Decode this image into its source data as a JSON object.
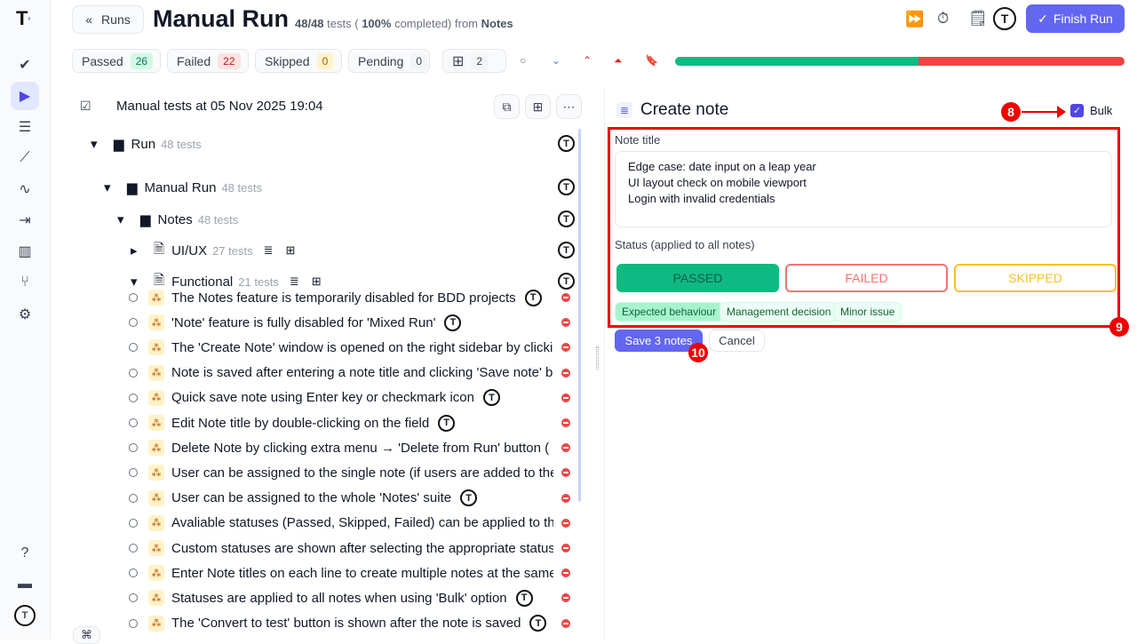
{
  "sidebar": {
    "logo": "T",
    "items": [
      {
        "icon": "check-icon",
        "glyph": "✔"
      },
      {
        "icon": "play-icon",
        "glyph": "▶",
        "active": true
      },
      {
        "icon": "list-icon",
        "glyph": "☰"
      },
      {
        "icon": "steps-icon",
        "glyph": "⟋"
      },
      {
        "icon": "pulse-icon",
        "glyph": "∿"
      },
      {
        "icon": "import-icon",
        "glyph": "⇥"
      },
      {
        "icon": "chart-icon",
        "glyph": "▥"
      },
      {
        "icon": "branch-icon",
        "glyph": "⑂"
      },
      {
        "icon": "gear-icon",
        "glyph": "⚙"
      }
    ],
    "bottom": [
      {
        "icon": "help-icon",
        "glyph": "?"
      },
      {
        "icon": "folder-icon",
        "glyph": "▬"
      }
    ]
  },
  "header": {
    "back_label": "Runs",
    "title": "Manual Run",
    "progress_count": "48/48",
    "tests_word": "tests (",
    "percent": "100%",
    "completed_text": "completed) from",
    "source": "Notes",
    "finish_label": "Finish Run"
  },
  "filters": [
    {
      "label": "Passed",
      "count": "26"
    },
    {
      "label": "Failed",
      "count": "22"
    },
    {
      "label": "Skipped",
      "count": "0"
    },
    {
      "label": "Pending",
      "count": "0"
    },
    {
      "label": "",
      "count": "2"
    }
  ],
  "progress": {
    "passed_pct": 54.2,
    "failed_pct": 45.8,
    "passed_color": "#10b981",
    "failed_color": "#ef4444"
  },
  "tree": {
    "header": "Manual tests at 05 Nov 2025 19:04",
    "nodes": [
      {
        "label": "Run",
        "count": "48 tests"
      },
      {
        "label": "Manual Run",
        "count": "48 tests"
      },
      {
        "label": "Notes",
        "count": "48 tests"
      },
      {
        "label": "UI/UX",
        "count": "27 tests"
      },
      {
        "label": "Functional",
        "count": "21 tests"
      }
    ],
    "tests": [
      {
        "title": "The Notes feature is temporarily disabled for BDD projects",
        "avatar": true
      },
      {
        "title": "'Note' feature is fully disabled for 'Mixed Run'",
        "avatar": true
      },
      {
        "title": "The 'Create Note' window is opened on the right sidebar by clicking",
        "avatar": false
      },
      {
        "title": "Note is saved after entering a note title and clicking 'Save note' button",
        "avatar": false
      },
      {
        "title": "Quick save note using Enter key or checkmark icon",
        "avatar": true
      },
      {
        "title": "Edit Note title by double-clicking on the field",
        "avatar": true
      },
      {
        "title": "Delete Note by clicking extra menu → 'Delete from Run' button (",
        "avatar": false
      },
      {
        "title": "User can be assigned to the single note (if users are added to the project)",
        "avatar": false
      },
      {
        "title": "User can be assigned to the whole 'Notes' suite",
        "avatar": true
      },
      {
        "title": "Avaliable statuses (Passed, Skipped, Failed) can be applied to the note",
        "avatar": false
      },
      {
        "title": "Custom statuses are shown after selecting the appropriate status",
        "avatar": false
      },
      {
        "title": "Enter Note titles on each line to create multiple notes at the same time",
        "avatar": false
      },
      {
        "title": "Statuses are applied to all notes when using 'Bulk' option",
        "avatar": true
      },
      {
        "title": "The 'Convert to test' button is shown after the note is saved",
        "avatar": true
      }
    ]
  },
  "note": {
    "title": "Create note",
    "bulk_label": "Bulk",
    "bulk_checked": true,
    "field_label": "Note title",
    "lines": [
      "Edge case: date input on a leap year",
      "UI layout check on mobile viewport",
      "Login with invalid credentials"
    ],
    "status_label": "Status (applied to all notes)",
    "statuses": [
      "PASSED",
      "FAILED",
      "SKIPPED"
    ],
    "selected_status": "PASSED",
    "tags": [
      "Expected behaviour",
      "Management decision",
      "Minor issue"
    ],
    "save_label": "Save 3 notes",
    "cancel_label": "Cancel"
  },
  "annotations": [
    "8",
    "9",
    "10"
  ],
  "shortcut": "⌘"
}
